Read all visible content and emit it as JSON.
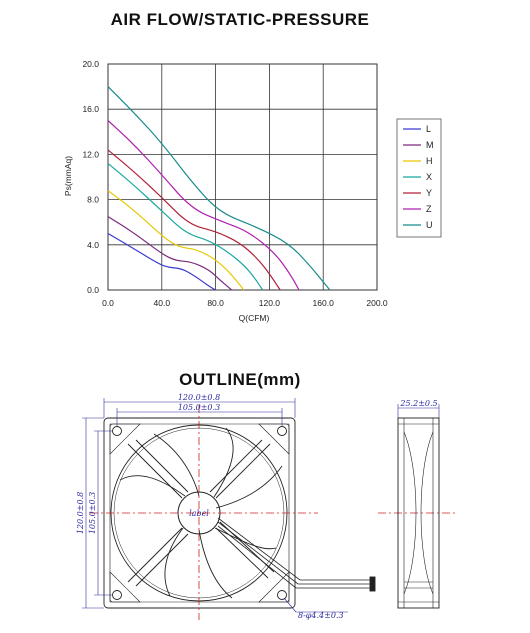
{
  "chart_data": {
    "type": "line",
    "title": "AIR FLOW/STATIC-PRESSURE",
    "xlabel": "Q(CFM)",
    "ylabel": "Ps(mmAq)",
    "xlim": [
      0,
      200
    ],
    "ylim": [
      0,
      20
    ],
    "x_ticks": [
      "0.0",
      "40.0",
      "80.0",
      "120.0",
      "160.0",
      "200.0"
    ],
    "y_ticks": [
      "0.0",
      "4.0",
      "8.0",
      "12.0",
      "16.0",
      "20.0"
    ],
    "grid": true,
    "legend_position": "right",
    "series": [
      {
        "name": "L",
        "color": "#3a3ad0",
        "points": [
          [
            0,
            5.0
          ],
          [
            20,
            3.6
          ],
          [
            38,
            2.3
          ],
          [
            45,
            2.0
          ],
          [
            55,
            1.9
          ],
          [
            65,
            1.2
          ],
          [
            72,
            0.6
          ],
          [
            77,
            0.2
          ],
          [
            80,
            0
          ]
        ]
      },
      {
        "name": "M",
        "color": "#7a2a7a",
        "points": [
          [
            0,
            6.5
          ],
          [
            20,
            5.0
          ],
          [
            40,
            3.2
          ],
          [
            50,
            2.6
          ],
          [
            62,
            2.5
          ],
          [
            75,
            1.8
          ],
          [
            83,
            0.9
          ],
          [
            89,
            0.3
          ],
          [
            92,
            0
          ]
        ]
      },
      {
        "name": "H",
        "color": "#e8c800",
        "points": [
          [
            0,
            8.8
          ],
          [
            20,
            7.0
          ],
          [
            40,
            4.8
          ],
          [
            52,
            3.8
          ],
          [
            66,
            3.6
          ],
          [
            80,
            2.7
          ],
          [
            90,
            1.6
          ],
          [
            97,
            0.6
          ],
          [
            101,
            0
          ]
        ]
      },
      {
        "name": "X",
        "color": "#1aa8a0",
        "points": [
          [
            0,
            11.2
          ],
          [
            20,
            9.2
          ],
          [
            40,
            7.0
          ],
          [
            58,
            5.0
          ],
          [
            75,
            4.4
          ],
          [
            90,
            3.3
          ],
          [
            102,
            2.1
          ],
          [
            110,
            0.9
          ],
          [
            115,
            0
          ]
        ]
      },
      {
        "name": "Y",
        "color": "#b0203a",
        "points": [
          [
            0,
            12.4
          ],
          [
            20,
            10.4
          ],
          [
            40,
            8.2
          ],
          [
            60,
            5.8
          ],
          [
            80,
            5.2
          ],
          [
            98,
            4.2
          ],
          [
            112,
            2.7
          ],
          [
            122,
            1.1
          ],
          [
            128,
            0
          ]
        ]
      },
      {
        "name": "Z",
        "color": "#b020b0",
        "points": [
          [
            0,
            15.0
          ],
          [
            20,
            12.8
          ],
          [
            40,
            10.2
          ],
          [
            62,
            7.2
          ],
          [
            84,
            6.1
          ],
          [
            104,
            5.2
          ],
          [
            124,
            3.3
          ],
          [
            136,
            1.3
          ],
          [
            142,
            0
          ]
        ]
      },
      {
        "name": "U",
        "color": "#188c8c",
        "points": [
          [
            0,
            18.0
          ],
          [
            20,
            15.6
          ],
          [
            40,
            13.0
          ],
          [
            66,
            9.0
          ],
          [
            84,
            6.8
          ],
          [
            110,
            5.6
          ],
          [
            135,
            4.1
          ],
          [
            152,
            1.9
          ],
          [
            160,
            0.7
          ],
          [
            165,
            0
          ]
        ]
      }
    ]
  },
  "outline": {
    "title": "OUTLINE(mm)",
    "dim_outer_width": "120.0±0.8",
    "dim_hole_width": "105.0±0.3",
    "dim_outer_height": "120.0±0.8",
    "dim_hole_height": "105.0±0.3",
    "dim_depth": "25.2±0.5",
    "dim_holes": "8-φ4.4±0.3",
    "hub_label": "label"
  }
}
